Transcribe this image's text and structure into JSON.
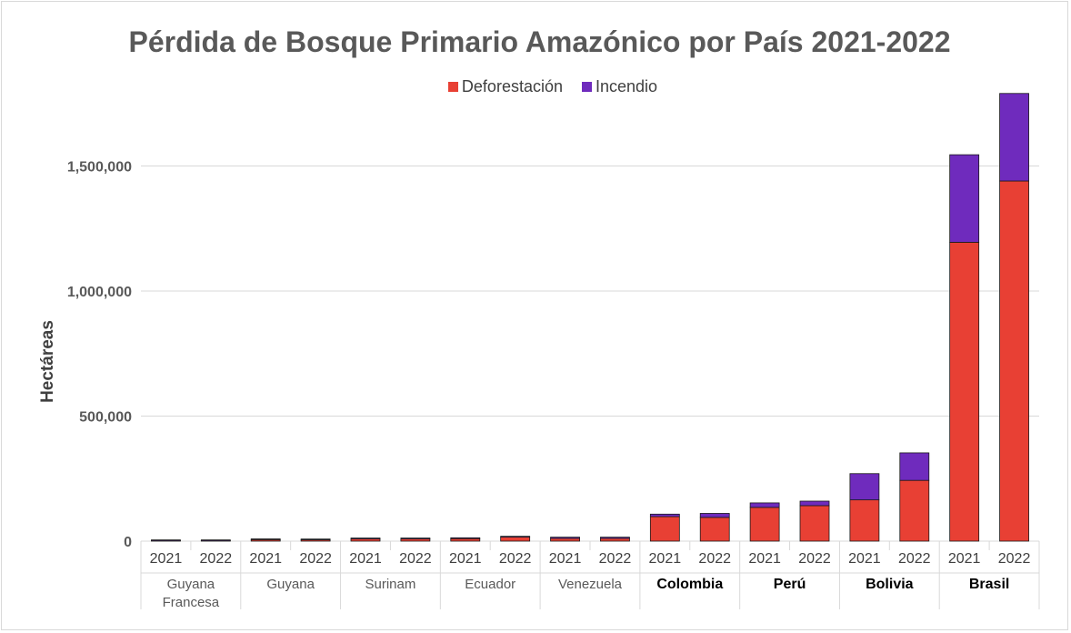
{
  "chart_data": {
    "type": "bar",
    "stacked": true,
    "title": "Pérdida de Bosque Primario Amazónico por País 2021-2022",
    "xlabel": "",
    "ylabel": "Hectáreas",
    "ylim": [
      0,
      1800000
    ],
    "yticks": [
      0,
      500000,
      1000000,
      1500000
    ],
    "ytick_labels": [
      "0",
      "500,000",
      "1,000,000",
      "1,500,000"
    ],
    "grid": true,
    "legend_position": "top",
    "groups": [
      {
        "label": "Guyana\nFrancesa",
        "bold": false
      },
      {
        "label": "Guyana",
        "bold": false
      },
      {
        "label": "Surinam",
        "bold": false
      },
      {
        "label": "Ecuador",
        "bold": false
      },
      {
        "label": "Venezuela",
        "bold": false
      },
      {
        "label": "Colombia",
        "bold": true
      },
      {
        "label": "Perú",
        "bold": true
      },
      {
        "label": "Bolivia",
        "bold": true
      },
      {
        "label": "Brasil",
        "bold": true
      }
    ],
    "categories": [
      "2021",
      "2022"
    ],
    "series": [
      {
        "name": "Deforestación",
        "color": "#e84034",
        "values": [
          [
            1500,
            1500
          ],
          [
            6000,
            5500
          ],
          [
            9000,
            9000
          ],
          [
            10000,
            16000
          ],
          [
            11000,
            11000
          ],
          [
            98000,
            95000
          ],
          [
            135000,
            142000
          ],
          [
            165000,
            243000
          ],
          [
            1195000,
            1440000
          ]
        ]
      },
      {
        "name": "Incendio",
        "color": "#6f2bbd",
        "values": [
          [
            3500,
            3500
          ],
          [
            3000,
            3000
          ],
          [
            3500,
            3500
          ],
          [
            3500,
            3500
          ],
          [
            5000,
            5000
          ],
          [
            10000,
            16000
          ],
          [
            18000,
            18000
          ],
          [
            105000,
            110000
          ],
          [
            350000,
            350000
          ]
        ]
      }
    ]
  }
}
